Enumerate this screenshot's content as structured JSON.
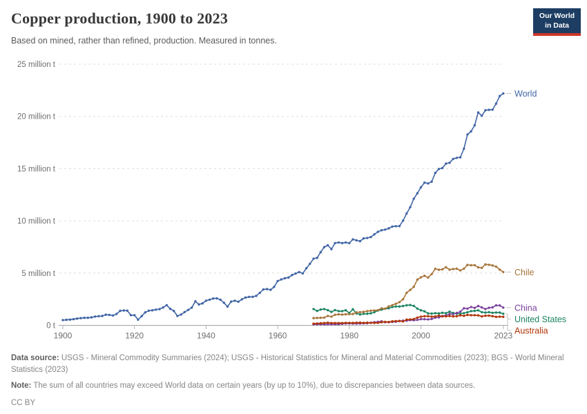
{
  "header": {
    "title": "Copper production, 1900 to 2023",
    "subtitle": "Based on mined, rather than refined, production. Measured in tonnes."
  },
  "logo": {
    "line1": "Our World",
    "line2": "in Data",
    "bg_color": "#1d3d63",
    "accent_color": "#cb3627"
  },
  "chart_data": {
    "type": "line",
    "title": "Copper production, 1900 to 2023",
    "unit": "million tonnes",
    "x_range": [
      1900,
      2023
    ],
    "ylim_million_t": [
      0,
      25
    ],
    "grid": "dashed-horizontal",
    "legend_position": "right-end-labels",
    "x_ticks": [
      1900,
      1920,
      1940,
      1960,
      1980,
      2000,
      2023
    ],
    "y_ticks": [
      {
        "value": 0,
        "label": "0 t"
      },
      {
        "value": 5,
        "label": "5 million t"
      },
      {
        "value": 10,
        "label": "10 million t"
      },
      {
        "value": 15,
        "label": "15 million t"
      },
      {
        "value": 20,
        "label": "20 million t"
      },
      {
        "value": 25,
        "label": "25 million t"
      }
    ],
    "series": [
      {
        "name": "World",
        "color": "#4165a5",
        "start_year": 1900,
        "values_million_t": [
          0.5,
          0.53,
          0.55,
          0.59,
          0.65,
          0.69,
          0.72,
          0.72,
          0.76,
          0.84,
          0.87,
          0.89,
          1.02,
          1.0,
          0.94,
          1.09,
          1.39,
          1.42,
          1.41,
          0.97,
          0.97,
          0.54,
          0.88,
          1.24,
          1.4,
          1.44,
          1.5,
          1.55,
          1.71,
          1.93,
          1.58,
          1.38,
          0.9,
          1.03,
          1.27,
          1.47,
          1.7,
          2.3,
          2.0,
          2.1,
          2.36,
          2.46,
          2.57,
          2.58,
          2.45,
          2.16,
          1.79,
          2.27,
          2.36,
          2.26,
          2.49,
          2.66,
          2.72,
          2.73,
          2.82,
          3.11,
          3.44,
          3.47,
          3.4,
          3.68,
          4.24,
          4.39,
          4.51,
          4.58,
          4.81,
          4.96,
          5.1,
          4.97,
          5.46,
          5.89,
          6.38,
          6.46,
          7.0,
          7.49,
          7.66,
          7.29,
          7.87,
          7.93,
          7.87,
          7.93,
          7.87,
          8.23,
          8.14,
          8.06,
          8.32,
          8.36,
          8.45,
          8.71,
          8.95,
          9.1,
          9.16,
          9.28,
          9.46,
          9.49,
          9.5,
          10.02,
          10.71,
          11.31,
          12.12,
          12.64,
          13.21,
          13.66,
          13.58,
          13.75,
          14.59,
          14.97,
          15.05,
          15.48,
          15.56,
          15.93,
          16.03,
          16.08,
          16.91,
          18.27,
          18.56,
          19.15,
          20.38,
          20.06,
          20.59,
          20.63,
          20.65,
          21.22,
          21.95,
          22.2
        ]
      },
      {
        "name": "Chile",
        "color": "#a8753a",
        "start_year": 1970,
        "values_million_t": [
          0.69,
          0.71,
          0.72,
          0.74,
          0.9,
          0.83,
          1.01,
          1.05,
          1.03,
          1.06,
          1.07,
          1.08,
          1.24,
          1.26,
          1.29,
          1.36,
          1.4,
          1.42,
          1.45,
          1.63,
          1.59,
          1.81,
          1.93,
          2.06,
          2.22,
          2.49,
          3.12,
          3.39,
          3.69,
          4.38,
          4.6,
          4.74,
          4.58,
          4.9,
          5.41,
          5.32,
          5.36,
          5.56,
          5.33,
          5.39,
          5.42,
          5.26,
          5.43,
          5.78,
          5.75,
          5.76,
          5.55,
          5.5,
          5.83,
          5.79,
          5.73,
          5.62,
          5.33,
          5.1
        ]
      },
      {
        "name": "China",
        "color": "#7c43a1",
        "start_year": 1970,
        "values_million_t": [
          0.09,
          0.1,
          0.1,
          0.1,
          0.1,
          0.1,
          0.1,
          0.1,
          0.15,
          0.18,
          0.18,
          0.17,
          0.17,
          0.18,
          0.19,
          0.2,
          0.25,
          0.3,
          0.33,
          0.38,
          0.3,
          0.3,
          0.33,
          0.35,
          0.4,
          0.45,
          0.44,
          0.5,
          0.49,
          0.52,
          0.59,
          0.59,
          0.57,
          0.61,
          0.74,
          0.76,
          0.89,
          0.95,
          1.09,
          1.07,
          1.19,
          1.31,
          1.63,
          1.6,
          1.76,
          1.67,
          1.85,
          1.71,
          1.56,
          1.68,
          1.72,
          1.91,
          1.9,
          1.7
        ]
      },
      {
        "name": "United States",
        "color": "#1d8460",
        "start_year": 1970,
        "values_million_t": [
          1.56,
          1.38,
          1.51,
          1.56,
          1.45,
          1.28,
          1.46,
          1.36,
          1.36,
          1.44,
          1.18,
          1.54,
          1.14,
          1.04,
          1.1,
          1.11,
          1.15,
          1.26,
          1.42,
          1.5,
          1.59,
          1.63,
          1.76,
          1.8,
          1.8,
          1.85,
          1.92,
          1.94,
          1.86,
          1.6,
          1.44,
          1.34,
          1.14,
          1.12,
          1.16,
          1.14,
          1.2,
          1.17,
          1.31,
          1.18,
          1.11,
          1.11,
          1.17,
          1.25,
          1.36,
          1.38,
          1.43,
          1.26,
          1.22,
          1.26,
          1.2,
          1.23,
          1.22,
          1.1
        ]
      },
      {
        "name": "Australia",
        "color": "#b13507",
        "start_year": 1970,
        "values_million_t": [
          0.16,
          0.18,
          0.2,
          0.22,
          0.25,
          0.22,
          0.22,
          0.22,
          0.22,
          0.24,
          0.24,
          0.23,
          0.25,
          0.26,
          0.24,
          0.26,
          0.24,
          0.23,
          0.24,
          0.3,
          0.33,
          0.32,
          0.38,
          0.4,
          0.42,
          0.37,
          0.55,
          0.56,
          0.6,
          0.74,
          0.83,
          0.87,
          0.88,
          0.83,
          0.85,
          0.93,
          0.86,
          0.86,
          0.89,
          0.85,
          0.87,
          0.96,
          0.91,
          0.99,
          0.97,
          0.97,
          0.95,
          0.86,
          0.92,
          0.93,
          0.88,
          0.81,
          0.83,
          0.81
        ]
      }
    ]
  },
  "footer": {
    "datasource_label": "Data source:",
    "datasource_text": "USGS - Mineral Commodity Summaries (2024); USGS - Historical Statistics for Mineral and Material Commodities (2023); BGS - World Mineral Statistics (2023)",
    "note_label": "Note:",
    "note_text": "The sum of all countries may exceed World data on certain years (by up to 10%), due to discrepancies between data sources.",
    "license": "CC BY"
  }
}
